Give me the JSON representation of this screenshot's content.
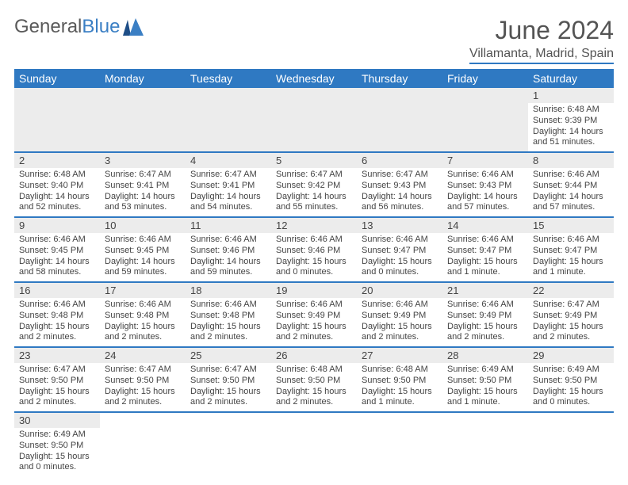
{
  "brand": {
    "general": "General",
    "blue": "Blue"
  },
  "title": "June 2024",
  "location": "Villamanta, Madrid, Spain",
  "colors": {
    "header_bg": "#2f79c2",
    "header_text": "#ffffff",
    "daynum_bg": "#ececec",
    "border": "#2f79c2",
    "text": "#444444",
    "title_text": "#545454"
  },
  "typography": {
    "title_fontsize": 32,
    "location_fontsize": 16,
    "dayheader_fontsize": 14,
    "daynum_fontsize": 13,
    "content_fontsize": 11
  },
  "day_headers": [
    "Sunday",
    "Monday",
    "Tuesday",
    "Wednesday",
    "Thursday",
    "Friday",
    "Saturday"
  ],
  "grid": {
    "rows": 6,
    "cols": 7,
    "leading_empty": 6
  },
  "days": [
    {
      "n": 1,
      "sunrise": "6:48 AM",
      "sunset": "9:39 PM",
      "daylight": "14 hours and 51 minutes."
    },
    {
      "n": 2,
      "sunrise": "6:48 AM",
      "sunset": "9:40 PM",
      "daylight": "14 hours and 52 minutes."
    },
    {
      "n": 3,
      "sunrise": "6:47 AM",
      "sunset": "9:41 PM",
      "daylight": "14 hours and 53 minutes."
    },
    {
      "n": 4,
      "sunrise": "6:47 AM",
      "sunset": "9:41 PM",
      "daylight": "14 hours and 54 minutes."
    },
    {
      "n": 5,
      "sunrise": "6:47 AM",
      "sunset": "9:42 PM",
      "daylight": "14 hours and 55 minutes."
    },
    {
      "n": 6,
      "sunrise": "6:47 AM",
      "sunset": "9:43 PM",
      "daylight": "14 hours and 56 minutes."
    },
    {
      "n": 7,
      "sunrise": "6:46 AM",
      "sunset": "9:43 PM",
      "daylight": "14 hours and 57 minutes."
    },
    {
      "n": 8,
      "sunrise": "6:46 AM",
      "sunset": "9:44 PM",
      "daylight": "14 hours and 57 minutes."
    },
    {
      "n": 9,
      "sunrise": "6:46 AM",
      "sunset": "9:45 PM",
      "daylight": "14 hours and 58 minutes."
    },
    {
      "n": 10,
      "sunrise": "6:46 AM",
      "sunset": "9:45 PM",
      "daylight": "14 hours and 59 minutes."
    },
    {
      "n": 11,
      "sunrise": "6:46 AM",
      "sunset": "9:46 PM",
      "daylight": "14 hours and 59 minutes."
    },
    {
      "n": 12,
      "sunrise": "6:46 AM",
      "sunset": "9:46 PM",
      "daylight": "15 hours and 0 minutes."
    },
    {
      "n": 13,
      "sunrise": "6:46 AM",
      "sunset": "9:47 PM",
      "daylight": "15 hours and 0 minutes."
    },
    {
      "n": 14,
      "sunrise": "6:46 AM",
      "sunset": "9:47 PM",
      "daylight": "15 hours and 1 minute."
    },
    {
      "n": 15,
      "sunrise": "6:46 AM",
      "sunset": "9:47 PM",
      "daylight": "15 hours and 1 minute."
    },
    {
      "n": 16,
      "sunrise": "6:46 AM",
      "sunset": "9:48 PM",
      "daylight": "15 hours and 2 minutes."
    },
    {
      "n": 17,
      "sunrise": "6:46 AM",
      "sunset": "9:48 PM",
      "daylight": "15 hours and 2 minutes."
    },
    {
      "n": 18,
      "sunrise": "6:46 AM",
      "sunset": "9:48 PM",
      "daylight": "15 hours and 2 minutes."
    },
    {
      "n": 19,
      "sunrise": "6:46 AM",
      "sunset": "9:49 PM",
      "daylight": "15 hours and 2 minutes."
    },
    {
      "n": 20,
      "sunrise": "6:46 AM",
      "sunset": "9:49 PM",
      "daylight": "15 hours and 2 minutes."
    },
    {
      "n": 21,
      "sunrise": "6:46 AM",
      "sunset": "9:49 PM",
      "daylight": "15 hours and 2 minutes."
    },
    {
      "n": 22,
      "sunrise": "6:47 AM",
      "sunset": "9:49 PM",
      "daylight": "15 hours and 2 minutes."
    },
    {
      "n": 23,
      "sunrise": "6:47 AM",
      "sunset": "9:50 PM",
      "daylight": "15 hours and 2 minutes."
    },
    {
      "n": 24,
      "sunrise": "6:47 AM",
      "sunset": "9:50 PM",
      "daylight": "15 hours and 2 minutes."
    },
    {
      "n": 25,
      "sunrise": "6:47 AM",
      "sunset": "9:50 PM",
      "daylight": "15 hours and 2 minutes."
    },
    {
      "n": 26,
      "sunrise": "6:48 AM",
      "sunset": "9:50 PM",
      "daylight": "15 hours and 2 minutes."
    },
    {
      "n": 27,
      "sunrise": "6:48 AM",
      "sunset": "9:50 PM",
      "daylight": "15 hours and 1 minute."
    },
    {
      "n": 28,
      "sunrise": "6:49 AM",
      "sunset": "9:50 PM",
      "daylight": "15 hours and 1 minute."
    },
    {
      "n": 29,
      "sunrise": "6:49 AM",
      "sunset": "9:50 PM",
      "daylight": "15 hours and 0 minutes."
    },
    {
      "n": 30,
      "sunrise": "6:49 AM",
      "sunset": "9:50 PM",
      "daylight": "15 hours and 0 minutes."
    }
  ],
  "labels": {
    "sunrise": "Sunrise:",
    "sunset": "Sunset:",
    "daylight": "Daylight:"
  }
}
